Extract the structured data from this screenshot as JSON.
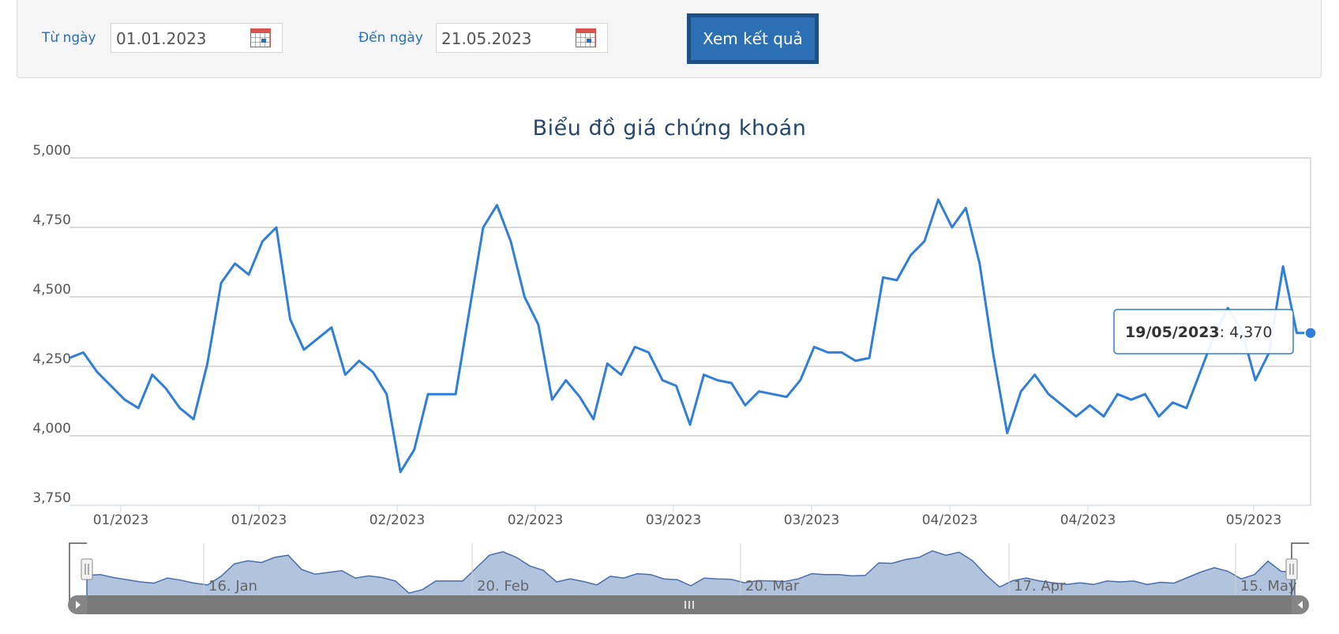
{
  "filter": {
    "from_label": "Từ ngày",
    "from_value": "01.01.2023",
    "to_label": "Đến ngày",
    "to_value": "21.05.2023",
    "submit_label": "Xem kết quả",
    "calendar_icon": "calendar-icon"
  },
  "chart_data": {
    "type": "line",
    "title": "Biểu đồ giá chứng khoán",
    "xlabel": "",
    "ylabel": "",
    "ylim": [
      3750,
      5000
    ],
    "yticks": [
      "3,750",
      "4,000",
      "4,250",
      "4,500",
      "4,750",
      "5,000"
    ],
    "ytick_values": [
      3750,
      4000,
      4250,
      4500,
      4750,
      5000
    ],
    "xticks": [
      "01/2023",
      "01/2023",
      "02/2023",
      "02/2023",
      "03/2023",
      "03/2023",
      "04/2023",
      "04/2023",
      "05/2023"
    ],
    "grid": true,
    "color": "#2f7ed8",
    "series": [
      {
        "values": [
          4280,
          4300,
          4230,
          4180,
          4130,
          4100,
          4220,
          4170,
          4100,
          4060,
          4260,
          4550,
          4620,
          4580,
          4700,
          4750,
          4420,
          4310,
          4350,
          4390,
          4220,
          4270,
          4230,
          4150,
          3870,
          3950,
          4150,
          4150,
          4150,
          4450,
          4750,
          4830,
          4700,
          4500,
          4400,
          4130,
          4200,
          4140,
          4060,
          4260,
          4220,
          4320,
          4300,
          4200,
          4180,
          4040,
          4220,
          4200,
          4190,
          4110,
          4160,
          4150,
          4140,
          4200,
          4320,
          4300,
          4300,
          4270,
          4280,
          4570,
          4560,
          4650,
          4700,
          4850,
          4750,
          4820,
          4620,
          4290,
          4010,
          4160,
          4220,
          4150,
          4110,
          4070,
          4110,
          4070,
          4150,
          4130,
          4150,
          4070,
          4120,
          4100,
          4230,
          4360,
          4460,
          4380,
          4200,
          4300,
          4610,
          4370,
          4370
        ]
      }
    ],
    "tooltip": {
      "date": "19/05/2023",
      "value": "4,370"
    },
    "navigator": {
      "labels": [
        "16. Jan",
        "20. Feb",
        "20. Mar",
        "17. Apr",
        "15. May"
      ],
      "scroll_icons": [
        "scroll-left-arrow-icon",
        "scrollbar-grip-icon",
        "scroll-right-arrow-icon"
      ]
    }
  }
}
